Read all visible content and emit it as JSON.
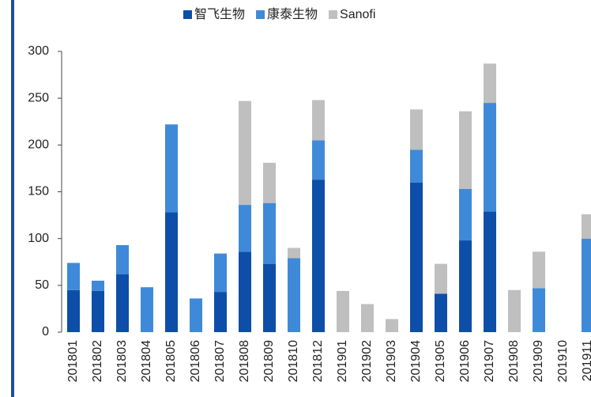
{
  "chart_data": {
    "type": "stacked_bar",
    "categories": [
      "201801",
      "201802",
      "201803",
      "201804",
      "201805",
      "201806",
      "201807",
      "201808",
      "201809",
      "201810",
      "201812",
      "201901",
      "201902",
      "201903",
      "201904",
      "201905",
      "201906",
      "201907",
      "201908",
      "201909",
      "201910",
      "201911"
    ],
    "series": [
      {
        "name": "智飞生物",
        "color": "#0d4fa8",
        "values": [
          45,
          44,
          62,
          0,
          128,
          0,
          43,
          86,
          73,
          0,
          163,
          0,
          0,
          0,
          160,
          41,
          98,
          129,
          0,
          0,
          0,
          0
        ]
      },
      {
        "name": "康泰生物",
        "color": "#3f8ad8",
        "values": [
          29,
          11,
          31,
          48,
          94,
          36,
          41,
          50,
          65,
          79,
          42,
          0,
          0,
          0,
          35,
          0,
          55,
          116,
          0,
          47,
          0,
          100
        ]
      },
      {
        "name": "Sanofi",
        "color": "#bfbfbf",
        "values": [
          0,
          0,
          0,
          0,
          0,
          0,
          0,
          111,
          43,
          11,
          43,
          44,
          30,
          14,
          43,
          32,
          83,
          42,
          45,
          39,
          0,
          26
        ]
      }
    ],
    "ylim": [
      0,
      300
    ],
    "yticks": [
      0,
      50,
      100,
      150,
      200,
      250,
      300
    ],
    "legend": "top"
  }
}
